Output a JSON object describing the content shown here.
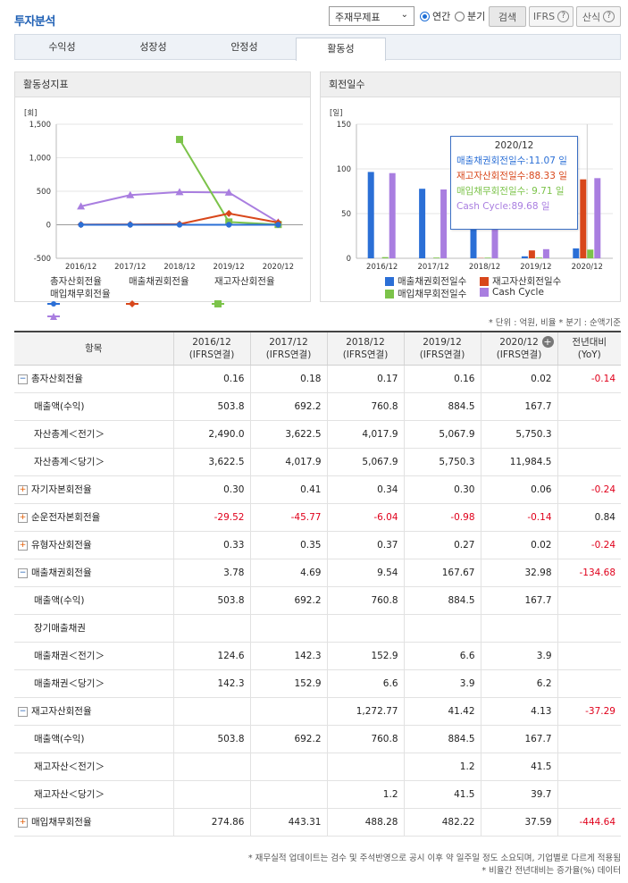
{
  "header": {
    "title": "투자분석",
    "select_value": "주재무제표",
    "radio_annual": "연간",
    "radio_quarter": "분기",
    "search_label": "검색",
    "ifrs_label": "IFRS",
    "formula_label": "산식"
  },
  "tabs": [
    "수익성",
    "성장성",
    "안정성",
    "활동성"
  ],
  "left_chart": {
    "title": "활동성지표",
    "unit": "[회]",
    "legend": [
      "총자산회전율",
      "매출채권회전율",
      "재고자산회전율",
      "매입채무회전율"
    ]
  },
  "right_chart": {
    "title": "회전일수",
    "unit": "[일]",
    "legend": [
      "매출채권회전일수",
      "재고자산회전일수",
      "매입채무회전일수",
      "Cash Cycle"
    ],
    "tooltip": {
      "title": "2020/12",
      "rows": [
        "매출채권회전일수:11.07 일",
        "재고자산회전일수:88.33 일",
        "매입채무회전일수: 9.71 일",
        "Cash Cycle:89.68 일"
      ]
    }
  },
  "chart_data": [
    {
      "type": "line",
      "unit": "[회]",
      "categories": [
        "2016/12",
        "2017/12",
        "2018/12",
        "2019/12",
        "2020/12"
      ],
      "ylim": [
        -500,
        1500
      ],
      "yticks": [
        "1,500",
        "1,000",
        "500",
        "0",
        "-500"
      ],
      "series": [
        {
          "name": "총자산회전율",
          "values": [
            0.16,
            0.18,
            0.17,
            0.16,
            0.02
          ],
          "color": "#2b6fd6"
        },
        {
          "name": "매출채권회전율",
          "values": [
            3.78,
            4.69,
            9.54,
            167.67,
            32.98
          ],
          "color": "#d8471b"
        },
        {
          "name": "재고자산회전율",
          "values": [
            null,
            null,
            1272.77,
            41.42,
            4.13
          ],
          "color": "#7cc34a"
        },
        {
          "name": "매입채무회전율",
          "values": [
            274.86,
            443.31,
            488.28,
            482.22,
            37.59
          ],
          "color": "#a97ee0"
        }
      ],
      "grid": true,
      "legend": "bottom"
    },
    {
      "type": "bar",
      "unit": "[일]",
      "categories": [
        "2016/12",
        "2017/12",
        "2018/12",
        "2019/12",
        "2020/12"
      ],
      "ylim": [
        0,
        150
      ],
      "yticks": [
        "150",
        "100",
        "50",
        "0"
      ],
      "series": [
        {
          "name": "매출채권회전일수",
          "values": [
            96.6,
            77.8,
            38.3,
            2.2,
            11.07
          ],
          "color": "#2b6fd6"
        },
        {
          "name": "재고자산회전일수",
          "values": [
            null,
            null,
            0.3,
            8.8,
            88.33
          ],
          "color": "#d8471b"
        },
        {
          "name": "매입채무회전일수",
          "values": [
            1.3,
            0.8,
            0.7,
            0.8,
            9.71
          ],
          "color": "#7cc34a"
        },
        {
          "name": "Cash Cycle",
          "values": [
            95.3,
            77.0,
            37.9,
            10.2,
            89.68
          ],
          "color": "#a97ee0"
        }
      ],
      "grid": true,
      "legend": "bottom"
    }
  ],
  "notes_top": "* 단위 : 억원, 비율   * 분기 : 순액기준",
  "table": {
    "headers": [
      "항목",
      "2016/12\n(IFRS연결)",
      "2017/12\n(IFRS연결)",
      "2018/12\n(IFRS연결)",
      "2019/12\n(IFRS연결)",
      "2020/12\n(IFRS연결)",
      "전년대비\n(YoY)"
    ],
    "rows": [
      {
        "label": "총자산회전율",
        "toggle": "minus",
        "values": [
          "0.16",
          "0.18",
          "0.17",
          "0.16",
          "0.02",
          "-0.14"
        ]
      },
      {
        "label": "매출액(수익)",
        "values": [
          "503.8",
          "692.2",
          "760.8",
          "884.5",
          "167.7",
          ""
        ]
      },
      {
        "label": "자산총계＜전기＞",
        "values": [
          "2,490.0",
          "3,622.5",
          "4,017.9",
          "5,067.9",
          "5,750.3",
          ""
        ]
      },
      {
        "label": "자산총계＜당기＞",
        "values": [
          "3,622.5",
          "4,017.9",
          "5,067.9",
          "5,750.3",
          "11,984.5",
          ""
        ]
      },
      {
        "label": "자기자본회전율",
        "toggle": "plus",
        "values": [
          "0.30",
          "0.41",
          "0.34",
          "0.30",
          "0.06",
          "-0.24"
        ]
      },
      {
        "label": "순운전자본회전율",
        "toggle": "plus",
        "values": [
          "-29.52",
          "-45.77",
          "-6.04",
          "-0.98",
          "-0.14",
          "0.84"
        ]
      },
      {
        "label": "유형자산회전율",
        "toggle": "plus",
        "values": [
          "0.33",
          "0.35",
          "0.37",
          "0.27",
          "0.02",
          "-0.24"
        ]
      },
      {
        "label": "매출채권회전율",
        "toggle": "minus",
        "values": [
          "3.78",
          "4.69",
          "9.54",
          "167.67",
          "32.98",
          "-134.68"
        ]
      },
      {
        "label": "매출액(수익)",
        "values": [
          "503.8",
          "692.2",
          "760.8",
          "884.5",
          "167.7",
          ""
        ]
      },
      {
        "label": "장기매출채권",
        "values": [
          "",
          "",
          "",
          "",
          "",
          ""
        ]
      },
      {
        "label": "매출채권＜전기＞",
        "values": [
          "124.6",
          "142.3",
          "152.9",
          "6.6",
          "3.9",
          ""
        ]
      },
      {
        "label": "매출채권＜당기＞",
        "values": [
          "142.3",
          "152.9",
          "6.6",
          "3.9",
          "6.2",
          ""
        ]
      },
      {
        "label": "재고자산회전율",
        "toggle": "minus",
        "values": [
          "",
          "",
          "1,272.77",
          "41.42",
          "4.13",
          "-37.29"
        ]
      },
      {
        "label": "매출액(수익)",
        "values": [
          "503.8",
          "692.2",
          "760.8",
          "884.5",
          "167.7",
          ""
        ]
      },
      {
        "label": "재고자산＜전기＞",
        "values": [
          "",
          "",
          "",
          "1.2",
          "41.5",
          ""
        ]
      },
      {
        "label": "재고자산＜당기＞",
        "values": [
          "",
          "",
          "1.2",
          "41.5",
          "39.7",
          ""
        ]
      },
      {
        "label": "매입채무회전율",
        "toggle": "plus",
        "values": [
          "274.86",
          "443.31",
          "488.28",
          "482.22",
          "37.59",
          "-444.64"
        ]
      }
    ]
  },
  "footnotes": [
    "* 재무실적 업데이트는 검수 및 주석반영으로 공시 이후 약 일주일 정도 소요되며, 기업별로 다르게 적용됨",
    "* 비율간 전년대비는 증가율(%) 데이터"
  ]
}
